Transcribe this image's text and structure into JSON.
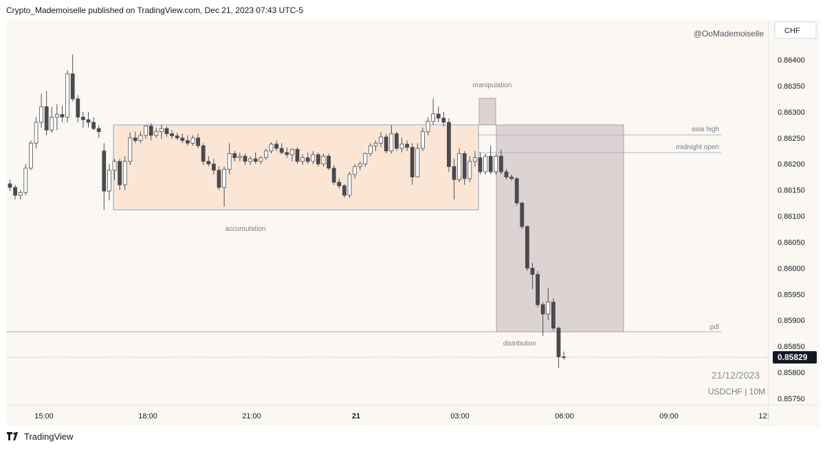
{
  "header": {
    "published": "Crypto_Mademoiselle published on TradingView.com, Dec 21, 2023 07:43 UTC-5"
  },
  "footer": {
    "brand": "TradingView"
  },
  "chart": {
    "currency_label": "CHF",
    "watermark_user": "@OoMademoiselle",
    "watermark_date": "21/12/2023",
    "watermark_symbol": "USDCHF | 10M",
    "last_price": "0.85829",
    "colors": {
      "bull": "#ffffff",
      "bear": "#4a4a4f",
      "wick": "#4a4a4f",
      "accum_box": "#fbe6d6",
      "dist_box": "#ddd3d3",
      "background": "#fbf8f4"
    }
  },
  "chart_data": {
    "type": "candlestick",
    "symbol": "USDCHF",
    "interval": "10M",
    "x_ticks": [
      "15:00",
      "18:00",
      "21:00",
      "21",
      "03:00",
      "06:00",
      "09:00",
      "12:"
    ],
    "y_ticks": [
      "0.86400",
      "0.86350",
      "0.86300",
      "0.86250",
      "0.86200",
      "0.86150",
      "0.86100",
      "0.86050",
      "0.86000",
      "0.85950",
      "0.85900",
      "0.85850",
      "0.85800",
      "0.85750"
    ],
    "ylim": [
      0.8573,
      0.8646
    ],
    "annotations": {
      "accumulation": {
        "label": "accumulation",
        "high": 0.86275,
        "low": 0.86112
      },
      "manipulation": {
        "label": "manipulation",
        "high": 0.86326,
        "low": 0.86275
      },
      "distribution": {
        "label": "distribution",
        "high": 0.86275,
        "low": 0.85878
      },
      "asia_high": {
        "label": "asia high",
        "price": 0.86256
      },
      "midnight_open": {
        "label": "midnight open",
        "price": 0.86222
      },
      "pdl": {
        "label": "pdl",
        "price": 0.85878
      }
    },
    "last_price": 0.85829,
    "candles": [
      {
        "o": 0.86162,
        "h": 0.8617,
        "l": 0.86148,
        "c": 0.86155
      },
      {
        "o": 0.86155,
        "h": 0.8616,
        "l": 0.86132,
        "c": 0.8614
      },
      {
        "o": 0.8614,
        "h": 0.8615,
        "l": 0.86132,
        "c": 0.86145
      },
      {
        "o": 0.86145,
        "h": 0.862,
        "l": 0.8614,
        "c": 0.86192
      },
      {
        "o": 0.86192,
        "h": 0.86245,
        "l": 0.86188,
        "c": 0.8624
      },
      {
        "o": 0.8624,
        "h": 0.8629,
        "l": 0.8623,
        "c": 0.8628
      },
      {
        "o": 0.8628,
        "h": 0.86335,
        "l": 0.8627,
        "c": 0.8631
      },
      {
        "o": 0.8631,
        "h": 0.8634,
        "l": 0.86255,
        "c": 0.86265
      },
      {
        "o": 0.86265,
        "h": 0.8631,
        "l": 0.8626,
        "c": 0.8629
      },
      {
        "o": 0.8629,
        "h": 0.86315,
        "l": 0.86265,
        "c": 0.86295
      },
      {
        "o": 0.86295,
        "h": 0.86312,
        "l": 0.8628,
        "c": 0.8629
      },
      {
        "o": 0.8629,
        "h": 0.8638,
        "l": 0.8628,
        "c": 0.86373
      },
      {
        "o": 0.86373,
        "h": 0.8641,
        "l": 0.8632,
        "c": 0.86325
      },
      {
        "o": 0.86325,
        "h": 0.86332,
        "l": 0.8628,
        "c": 0.8629
      },
      {
        "o": 0.8629,
        "h": 0.863,
        "l": 0.8627,
        "c": 0.86285
      },
      {
        "o": 0.86285,
        "h": 0.863,
        "l": 0.8627,
        "c": 0.8628
      },
      {
        "o": 0.8628,
        "h": 0.8629,
        "l": 0.86265,
        "c": 0.86268
      },
      {
        "o": 0.86268,
        "h": 0.86275,
        "l": 0.8625,
        "c": 0.86262
      },
      {
        "o": 0.86225,
        "h": 0.8624,
        "l": 0.86112,
        "c": 0.86148
      },
      {
        "o": 0.86148,
        "h": 0.862,
        "l": 0.8613,
        "c": 0.86188
      },
      {
        "o": 0.86188,
        "h": 0.8621,
        "l": 0.8617,
        "c": 0.86205
      },
      {
        "o": 0.86205,
        "h": 0.8621,
        "l": 0.8615,
        "c": 0.8616
      },
      {
        "o": 0.8616,
        "h": 0.86215,
        "l": 0.8615,
        "c": 0.86205
      },
      {
        "o": 0.86205,
        "h": 0.8626,
        "l": 0.86198,
        "c": 0.8625
      },
      {
        "o": 0.8625,
        "h": 0.86262,
        "l": 0.8624,
        "c": 0.86245
      },
      {
        "o": 0.86245,
        "h": 0.86262,
        "l": 0.8624,
        "c": 0.86255
      },
      {
        "o": 0.86255,
        "h": 0.86275,
        "l": 0.86248,
        "c": 0.86273
      },
      {
        "o": 0.86273,
        "h": 0.86278,
        "l": 0.86245,
        "c": 0.86255
      },
      {
        "o": 0.86255,
        "h": 0.8627,
        "l": 0.8625,
        "c": 0.86262
      },
      {
        "o": 0.86262,
        "h": 0.86275,
        "l": 0.86248,
        "c": 0.86268
      },
      {
        "o": 0.86268,
        "h": 0.86272,
        "l": 0.86252,
        "c": 0.86258
      },
      {
        "o": 0.86258,
        "h": 0.86265,
        "l": 0.86248,
        "c": 0.86254
      },
      {
        "o": 0.86254,
        "h": 0.8626,
        "l": 0.86246,
        "c": 0.8625
      },
      {
        "o": 0.8625,
        "h": 0.86258,
        "l": 0.8624,
        "c": 0.86245
      },
      {
        "o": 0.86245,
        "h": 0.86255,
        "l": 0.86235,
        "c": 0.8624
      },
      {
        "o": 0.8624,
        "h": 0.86255,
        "l": 0.86235,
        "c": 0.8625
      },
      {
        "o": 0.8625,
        "h": 0.86258,
        "l": 0.8623,
        "c": 0.86235
      },
      {
        "o": 0.86235,
        "h": 0.8624,
        "l": 0.86198,
        "c": 0.86205
      },
      {
        "o": 0.86205,
        "h": 0.86215,
        "l": 0.86195,
        "c": 0.862
      },
      {
        "o": 0.862,
        "h": 0.8621,
        "l": 0.8618,
        "c": 0.86188
      },
      {
        "o": 0.86188,
        "h": 0.86195,
        "l": 0.8615,
        "c": 0.86155
      },
      {
        "o": 0.86155,
        "h": 0.86195,
        "l": 0.86118,
        "c": 0.8619
      },
      {
        "o": 0.8619,
        "h": 0.8624,
        "l": 0.8618,
        "c": 0.8622
      },
      {
        "o": 0.8622,
        "h": 0.86225,
        "l": 0.86205,
        "c": 0.86212
      },
      {
        "o": 0.86212,
        "h": 0.86222,
        "l": 0.86205,
        "c": 0.86215
      },
      {
        "o": 0.86215,
        "h": 0.8622,
        "l": 0.86198,
        "c": 0.86205
      },
      {
        "o": 0.86205,
        "h": 0.86215,
        "l": 0.86198,
        "c": 0.8621
      },
      {
        "o": 0.8621,
        "h": 0.86222,
        "l": 0.862,
        "c": 0.86205
      },
      {
        "o": 0.86205,
        "h": 0.86215,
        "l": 0.862,
        "c": 0.86212
      },
      {
        "o": 0.86212,
        "h": 0.8623,
        "l": 0.86208,
        "c": 0.86225
      },
      {
        "o": 0.86225,
        "h": 0.86242,
        "l": 0.8622,
        "c": 0.86238
      },
      {
        "o": 0.86238,
        "h": 0.86245,
        "l": 0.86225,
        "c": 0.8623
      },
      {
        "o": 0.8623,
        "h": 0.8624,
        "l": 0.86218,
        "c": 0.86222
      },
      {
        "o": 0.86222,
        "h": 0.86232,
        "l": 0.86212,
        "c": 0.86218
      },
      {
        "o": 0.86218,
        "h": 0.8623,
        "l": 0.86205,
        "c": 0.86228
      },
      {
        "o": 0.86228,
        "h": 0.86232,
        "l": 0.862,
        "c": 0.86205
      },
      {
        "o": 0.86205,
        "h": 0.86218,
        "l": 0.86198,
        "c": 0.86212
      },
      {
        "o": 0.86212,
        "h": 0.86222,
        "l": 0.862,
        "c": 0.86205
      },
      {
        "o": 0.86205,
        "h": 0.86225,
        "l": 0.862,
        "c": 0.86218
      },
      {
        "o": 0.86218,
        "h": 0.86222,
        "l": 0.86195,
        "c": 0.862
      },
      {
        "o": 0.862,
        "h": 0.8622,
        "l": 0.86195,
        "c": 0.86215
      },
      {
        "o": 0.86215,
        "h": 0.8622,
        "l": 0.86188,
        "c": 0.86192
      },
      {
        "o": 0.86192,
        "h": 0.86198,
        "l": 0.8616,
        "c": 0.86165
      },
      {
        "o": 0.86165,
        "h": 0.86172,
        "l": 0.86152,
        "c": 0.86158
      },
      {
        "o": 0.86158,
        "h": 0.86162,
        "l": 0.86135,
        "c": 0.8614
      },
      {
        "o": 0.8614,
        "h": 0.86185,
        "l": 0.86135,
        "c": 0.8618
      },
      {
        "o": 0.8618,
        "h": 0.862,
        "l": 0.86172,
        "c": 0.86195
      },
      {
        "o": 0.86195,
        "h": 0.86205,
        "l": 0.86188,
        "c": 0.862
      },
      {
        "o": 0.862,
        "h": 0.86222,
        "l": 0.86195,
        "c": 0.8622
      },
      {
        "o": 0.8622,
        "h": 0.8624,
        "l": 0.86215,
        "c": 0.86235
      },
      {
        "o": 0.86235,
        "h": 0.86245,
        "l": 0.86225,
        "c": 0.8624
      },
      {
        "o": 0.8624,
        "h": 0.86262,
        "l": 0.86232,
        "c": 0.86252
      },
      {
        "o": 0.86252,
        "h": 0.86258,
        "l": 0.8622,
        "c": 0.86225
      },
      {
        "o": 0.86225,
        "h": 0.86275,
        "l": 0.8622,
        "c": 0.86258
      },
      {
        "o": 0.86258,
        "h": 0.86262,
        "l": 0.86225,
        "c": 0.8623
      },
      {
        "o": 0.8623,
        "h": 0.8625,
        "l": 0.86222,
        "c": 0.86238
      },
      {
        "o": 0.86238,
        "h": 0.86245,
        "l": 0.86225,
        "c": 0.86232
      },
      {
        "o": 0.86232,
        "h": 0.8624,
        "l": 0.8616,
        "c": 0.86175
      },
      {
        "o": 0.86175,
        "h": 0.8624,
        "l": 0.86175,
        "c": 0.8623
      },
      {
        "o": 0.8623,
        "h": 0.8627,
        "l": 0.86225,
        "c": 0.86262
      },
      {
        "o": 0.86262,
        "h": 0.8629,
        "l": 0.86255,
        "c": 0.86282
      },
      {
        "o": 0.86282,
        "h": 0.86326,
        "l": 0.86275,
        "c": 0.86296
      },
      {
        "o": 0.86296,
        "h": 0.8631,
        "l": 0.8628,
        "c": 0.86288
      },
      {
        "o": 0.86288,
        "h": 0.863,
        "l": 0.86272,
        "c": 0.8628
      },
      {
        "o": 0.8628,
        "h": 0.86288,
        "l": 0.86185,
        "c": 0.86195
      },
      {
        "o": 0.86195,
        "h": 0.8621,
        "l": 0.86132,
        "c": 0.8617
      },
      {
        "o": 0.8617,
        "h": 0.8623,
        "l": 0.86165,
        "c": 0.8622
      },
      {
        "o": 0.8622,
        "h": 0.86225,
        "l": 0.8616,
        "c": 0.86172
      },
      {
        "o": 0.86172,
        "h": 0.86215,
        "l": 0.86165,
        "c": 0.86205
      },
      {
        "o": 0.86205,
        "h": 0.86225,
        "l": 0.86195,
        "c": 0.86212
      },
      {
        "o": 0.86212,
        "h": 0.86222,
        "l": 0.8618,
        "c": 0.86185
      },
      {
        "o": 0.86185,
        "h": 0.8622,
        "l": 0.8618,
        "c": 0.86215
      },
      {
        "o": 0.86215,
        "h": 0.86235,
        "l": 0.8618,
        "c": 0.86185
      },
      {
        "o": 0.86185,
        "h": 0.86218,
        "l": 0.8618,
        "c": 0.86215
      },
      {
        "o": 0.86215,
        "h": 0.86228,
        "l": 0.8618,
        "c": 0.86185
      },
      {
        "o": 0.86185,
        "h": 0.8619,
        "l": 0.8617,
        "c": 0.86175
      },
      {
        "o": 0.86175,
        "h": 0.8618,
        "l": 0.86168,
        "c": 0.86172
      },
      {
        "o": 0.86172,
        "h": 0.86175,
        "l": 0.8612,
        "c": 0.86125
      },
      {
        "o": 0.86125,
        "h": 0.86128,
        "l": 0.86075,
        "c": 0.8608
      },
      {
        "o": 0.8608,
        "h": 0.86082,
        "l": 0.85995,
        "c": 0.86
      },
      {
        "o": 0.86,
        "h": 0.8601,
        "l": 0.8596,
        "c": 0.85988
      },
      {
        "o": 0.85988,
        "h": 0.85995,
        "l": 0.85925,
        "c": 0.8593
      },
      {
        "o": 0.8593,
        "h": 0.85935,
        "l": 0.8587,
        "c": 0.85912
      },
      {
        "o": 0.85912,
        "h": 0.85962,
        "l": 0.859,
        "c": 0.85935
      },
      {
        "o": 0.85935,
        "h": 0.85942,
        "l": 0.8588,
        "c": 0.85885
      },
      {
        "o": 0.85885,
        "h": 0.85888,
        "l": 0.85808,
        "c": 0.8583
      },
      {
        "o": 0.8583,
        "h": 0.8584,
        "l": 0.85824,
        "c": 0.85829
      }
    ]
  }
}
